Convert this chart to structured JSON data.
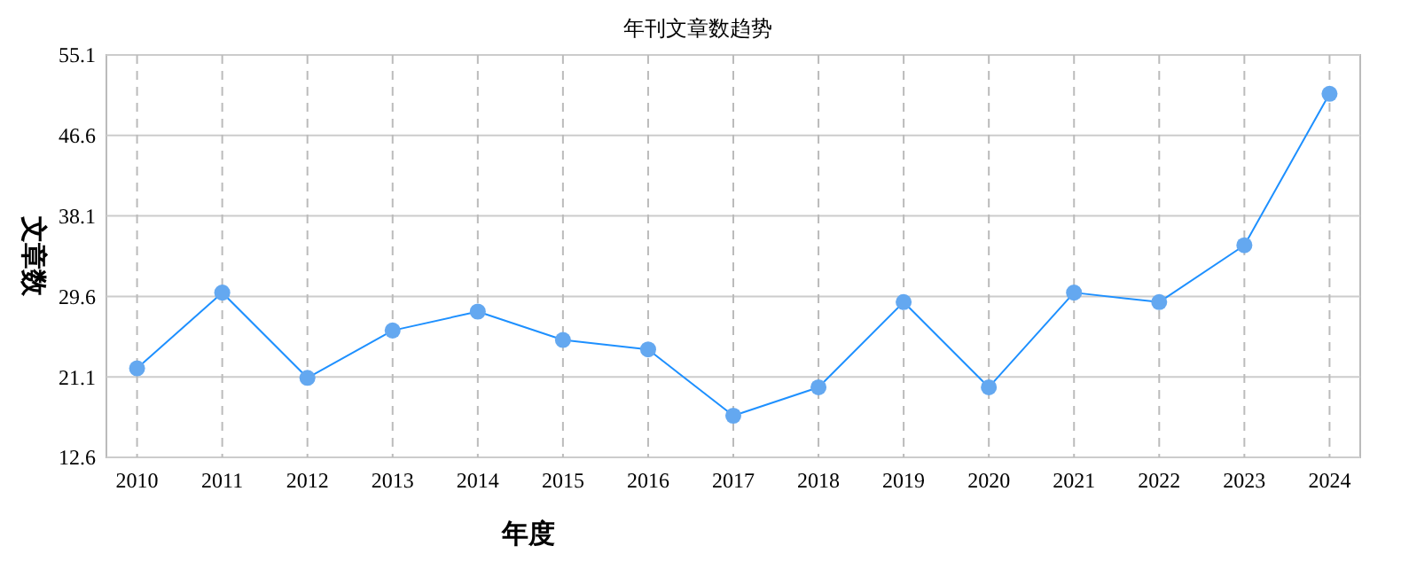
{
  "chart_data": {
    "type": "line",
    "title": "年刊文章数趋势",
    "xlabel": "年度",
    "ylabel": "文章数",
    "categories": [
      "2010",
      "2011",
      "2012",
      "2013",
      "2014",
      "2015",
      "2016",
      "2017",
      "2018",
      "2019",
      "2020",
      "2021",
      "2022",
      "2023",
      "2024"
    ],
    "series": [
      {
        "color": "#1e90ff",
        "values": [
          22,
          30,
          21,
          26,
          28,
          25,
          24,
          17,
          20,
          29,
          20,
          30,
          29,
          35,
          51
        ]
      }
    ],
    "ylim": [
      12.6,
      55.1
    ],
    "yticks": [
      12.6,
      21.1,
      29.6,
      38.1,
      46.6,
      55.1
    ],
    "grid": true,
    "marker": "circle",
    "line_style": "solid"
  }
}
